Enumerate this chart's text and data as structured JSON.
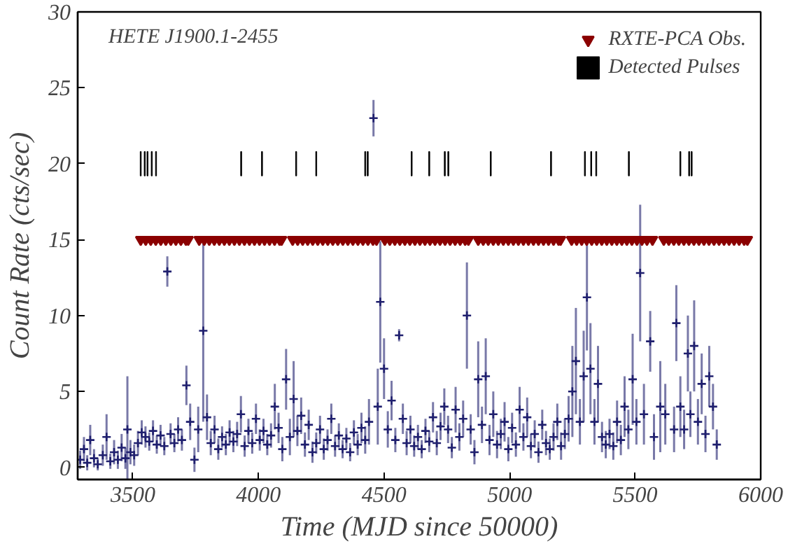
{
  "chart_data": {
    "type": "scatter",
    "title": "HETE J1900.1-2455",
    "xlabel": "Time (MJD since 50000)",
    "ylabel": "Count Rate (cts/sec)",
    "xlim": [
      3280,
      6000
    ],
    "ylim": [
      -0.8,
      30
    ],
    "xticks": [
      3500,
      4000,
      4500,
      5000,
      5500,
      6000
    ],
    "yticks": [
      0,
      5,
      10,
      15,
      20,
      25,
      30
    ],
    "grid": false,
    "legend": "top right",
    "series": [
      {
        "color": "#1f1f6e",
        "marker": "cross",
        "x": [
          3290,
          3305,
          3318,
          3330,
          3345,
          3360,
          3380,
          3395,
          3410,
          3425,
          3440,
          3455,
          3470,
          3478,
          3490,
          3505,
          3520,
          3535,
          3550,
          3565,
          3580,
          3595,
          3610,
          3625,
          3637,
          3650,
          3665,
          3680,
          3695,
          3713,
          3728,
          3745,
          3760,
          3780,
          3795,
          3810,
          3825,
          3840,
          3855,
          3870,
          3885,
          3900,
          3915,
          3930,
          3945,
          3960,
          3975,
          3990,
          4005,
          4020,
          4035,
          4050,
          4065,
          4080,
          4095,
          4110,
          4125,
          4140,
          4155,
          4170,
          4185,
          4200,
          4215,
          4230,
          4245,
          4260,
          4275,
          4290,
          4305,
          4320,
          4335,
          4350,
          4365,
          4380,
          4395,
          4410,
          4425,
          4440,
          4458,
          4475,
          4485,
          4500,
          4515,
          4530,
          4545,
          4560,
          4575,
          4590,
          4605,
          4620,
          4635,
          4650,
          4665,
          4680,
          4695,
          4710,
          4725,
          4740,
          4755,
          4770,
          4785,
          4800,
          4815,
          4830,
          4845,
          4860,
          4875,
          4890,
          4905,
          4920,
          4935,
          4950,
          4965,
          4980,
          4995,
          5010,
          5025,
          5040,
          5055,
          5070,
          5085,
          5100,
          5115,
          5130,
          5145,
          5160,
          5175,
          5190,
          5205,
          5220,
          5235,
          5250,
          5264,
          5280,
          5295,
          5308,
          5322,
          5338,
          5352,
          5368,
          5383,
          5398,
          5413,
          5428,
          5443,
          5458,
          5473,
          5490,
          5505,
          5520,
          5535,
          5560,
          5575,
          5600,
          5620,
          5655,
          5664,
          5680,
          5695,
          5710,
          5720,
          5735,
          5750,
          5765,
          5780,
          5795,
          5810,
          5825
        ],
        "values": [
          0.5,
          1.2,
          0.3,
          1.8,
          0.6,
          0.2,
          0.8,
          2.0,
          0.4,
          1.0,
          0.5,
          1.3,
          0.6,
          2.5,
          1.0,
          0.8,
          1.6,
          2.3,
          2.0,
          1.7,
          2.4,
          1.5,
          2.1,
          1.4,
          12.9,
          2.2,
          1.6,
          2.5,
          1.8,
          5.4,
          3.0,
          0.5,
          2.5,
          9.0,
          3.3,
          1.6,
          2.5,
          1.2,
          2.0,
          1.5,
          2.3,
          1.7,
          2.2,
          3.5,
          1.4,
          2.4,
          1.6,
          3.2,
          1.8,
          2.4,
          1.5,
          2.1,
          4.0,
          2.6,
          1.2,
          5.8,
          2.0,
          4.5,
          2.4,
          3.4,
          1.5,
          2.8,
          1.0,
          1.6,
          2.5,
          1.2,
          1.8,
          3.2,
          1.4,
          2.1,
          1.2,
          1.9,
          1.0,
          2.3,
          1.5,
          2.6,
          1.8,
          3.0,
          23.0,
          4.0,
          10.9,
          6.5,
          2.5,
          4.4,
          1.8,
          8.7,
          3.2,
          1.6,
          2.5,
          1.4,
          2.0,
          1.2,
          2.4,
          1.7,
          3.3,
          1.6,
          2.7,
          4.0,
          2.5,
          1.3,
          3.8,
          2.0,
          3.2,
          10.0,
          2.5,
          1.0,
          5.8,
          2.8,
          6.0,
          1.8,
          3.5,
          1.5,
          2.2,
          3.0,
          1.2,
          2.6,
          1.5,
          3.8,
          2.0,
          3.3,
          1.4,
          2.2,
          1.0,
          2.8,
          1.6,
          1.2,
          2.0,
          3.0,
          1.4,
          2.2,
          3.2,
          5.0,
          7.0,
          3.0,
          6.0,
          11.2,
          6.5,
          3.0,
          5.5,
          2.0,
          1.5,
          2.2,
          1.4,
          3.0,
          1.8,
          4.0,
          2.5,
          5.8,
          3.0,
          12.8,
          3.5,
          8.3,
          2.0,
          4.0,
          3.5,
          2.5,
          9.5,
          4.0,
          2.5,
          7.5,
          3.5,
          8.0,
          3.0,
          5.5,
          2.2,
          6.0,
          4.0,
          1.5
        ],
        "errors": [
          0.6,
          0.8,
          0.5,
          1.0,
          0.6,
          0.4,
          0.7,
          1.5,
          0.5,
          0.8,
          0.6,
          0.9,
          0.7,
          3.5,
          0.8,
          0.7,
          0.8,
          0.8,
          0.7,
          0.6,
          0.7,
          0.6,
          0.7,
          0.6,
          1.0,
          0.7,
          0.6,
          0.8,
          0.7,
          1.3,
          1.2,
          0.8,
          1.5,
          6.0,
          1.5,
          0.8,
          0.9,
          0.7,
          0.7,
          0.7,
          0.8,
          0.7,
          0.8,
          1.2,
          0.7,
          0.8,
          0.7,
          1.0,
          0.7,
          0.8,
          0.7,
          0.8,
          1.5,
          1.0,
          0.8,
          2.0,
          1.2,
          2.5,
          1.0,
          1.2,
          0.8,
          1.0,
          0.7,
          0.7,
          0.9,
          0.7,
          0.7,
          1.0,
          0.7,
          0.8,
          0.6,
          0.7,
          0.6,
          0.8,
          0.7,
          1.0,
          0.9,
          1.5,
          1.2,
          2.5,
          4.0,
          2.0,
          1.2,
          1.3,
          0.8,
          0.4,
          1.0,
          0.8,
          0.9,
          0.7,
          0.8,
          0.6,
          0.8,
          0.7,
          1.0,
          0.8,
          0.9,
          1.2,
          0.9,
          0.7,
          1.5,
          0.9,
          1.2,
          3.5,
          1.0,
          0.8,
          2.5,
          1.2,
          2.5,
          1.0,
          1.5,
          0.9,
          1.0,
          1.3,
          0.8,
          1.0,
          0.8,
          1.5,
          0.9,
          1.3,
          0.8,
          0.9,
          0.7,
          1.0,
          0.8,
          0.7,
          0.9,
          1.2,
          0.9,
          1.0,
          1.5,
          3.0,
          3.5,
          1.5,
          3.0,
          3.5,
          3.0,
          1.5,
          2.5,
          1.0,
          0.9,
          1.0,
          0.9,
          1.4,
          1.0,
          2.0,
          1.3,
          3.0,
          1.5,
          4.5,
          2.0,
          2.0,
          1.5,
          3.0,
          2.0,
          1.5,
          2.5,
          2.0,
          1.3,
          2.5,
          1.5,
          3.0,
          1.5,
          2.0,
          1.2,
          2.0,
          1.5,
          1.0
        ]
      },
      {
        "name": "RXTE-PCA Obs.",
        "color": "#8b0000",
        "marker": "triangle_down",
        "x": [
          3531,
          3551,
          3571,
          3591,
          3611,
          3631,
          3651,
          3671,
          3691,
          3711,
          3720,
          3764,
          3784,
          3804,
          3824,
          3844,
          3864,
          3884,
          3904,
          3924,
          3944,
          3964,
          3984,
          4004,
          4024,
          4044,
          4064,
          4084,
          4092,
          4136,
          4156,
          4176,
          4196,
          4216,
          4236,
          4256,
          4276,
          4296,
          4316,
          4336,
          4356,
          4376,
          4396,
          4416,
          4436,
          4456,
          4470,
          4503,
          4523,
          4543,
          4563,
          4583,
          4603,
          4623,
          4643,
          4663,
          4683,
          4703,
          4723,
          4743,
          4763,
          4783,
          4803,
          4823,
          4836,
          4875,
          4895,
          4915,
          4935,
          4955,
          4975,
          4995,
          5015,
          5035,
          5055,
          5075,
          5095,
          5115,
          5135,
          5155,
          5175,
          5195,
          5203,
          5247,
          5267,
          5287,
          5307,
          5327,
          5347,
          5367,
          5387,
          5407,
          5427,
          5447,
          5467,
          5487,
          5507,
          5527,
          5547,
          5569,
          5614,
          5634,
          5654,
          5674,
          5694,
          5714,
          5734,
          5754,
          5774,
          5794,
          5814,
          5834,
          5854,
          5874,
          5894,
          5914,
          5934,
          5947
        ],
        "values": [
          15,
          15,
          15,
          15,
          15,
          15,
          15,
          15,
          15,
          15,
          15,
          15,
          15,
          15,
          15,
          15,
          15,
          15,
          15,
          15,
          15,
          15,
          15,
          15,
          15,
          15,
          15,
          15,
          15,
          15,
          15,
          15,
          15,
          15,
          15,
          15,
          15,
          15,
          15,
          15,
          15,
          15,
          15,
          15,
          15,
          15,
          15,
          15,
          15,
          15,
          15,
          15,
          15,
          15,
          15,
          15,
          15,
          15,
          15,
          15,
          15,
          15,
          15,
          15,
          15,
          15,
          15,
          15,
          15,
          15,
          15,
          15,
          15,
          15,
          15,
          15,
          15,
          15,
          15,
          15,
          15,
          15,
          15,
          15,
          15,
          15,
          15,
          15,
          15,
          15,
          15,
          15,
          15,
          15,
          15,
          15,
          15,
          15,
          15,
          15,
          15,
          15,
          15,
          15,
          15,
          15,
          15,
          15,
          15,
          15,
          15,
          15,
          15,
          15,
          15,
          15,
          15,
          15
        ]
      },
      {
        "name": "Detected Pulses",
        "color": "#000000",
        "type": "bar",
        "base": [
          19.2,
          19.2,
          19.2,
          19.2,
          19.2,
          19.2,
          19.2,
          19.2,
          19.2,
          19.2,
          19.2,
          19.2,
          19.2,
          19.2,
          19.2,
          19.2,
          19.2,
          19.2,
          19.2,
          19.2,
          19.2,
          19.2,
          19.2,
          19.2
        ],
        "x": [
          3531,
          3547,
          3558,
          3575,
          3592,
          3931,
          4014,
          4150,
          4230,
          4425,
          4435,
          4610,
          4680,
          4742,
          4756,
          4925,
          5165,
          5300,
          5325,
          5345,
          5475,
          5680,
          5715,
          5725
        ],
        "values": [
          1.6,
          1.6,
          1.6,
          1.6,
          1.6,
          1.6,
          1.6,
          1.6,
          1.6,
          1.6,
          1.6,
          1.6,
          1.6,
          1.6,
          1.6,
          1.6,
          1.6,
          1.6,
          1.6,
          1.6,
          1.6,
          1.6,
          1.6,
          1.6
        ]
      }
    ]
  }
}
